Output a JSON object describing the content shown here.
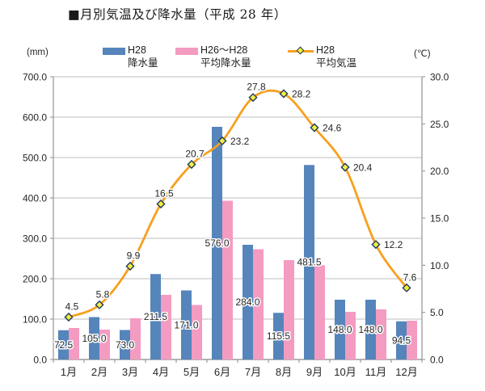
{
  "title": "■月別気温及び降水量（平成 28 年）",
  "units": {
    "left": "(mm)",
    "right": "(℃)"
  },
  "legend": {
    "items": [
      {
        "line1": "H28",
        "line2": "降水量",
        "swatch": "bar-blue"
      },
      {
        "line1": "H26～H28",
        "line2": "平均降水量",
        "swatch": "bar-pink"
      },
      {
        "line1": "H28",
        "line2": "平均気温",
        "swatch": "line-diamond"
      }
    ]
  },
  "colors": {
    "bar_h28": "#5585BB",
    "bar_avg": "#F49BC1",
    "line_temp": "#F7A01E",
    "marker_fill": "#F2EE3C",
    "marker_stroke": "#1F3864",
    "grid": "#C9C9C9",
    "axis": "#9C9C9C",
    "text": "#262626"
  },
  "chart_data": {
    "type": "combo-bar-line",
    "title": "■月別気温及び降水量（平成 28 年）",
    "categories": [
      "1月",
      "2月",
      "3月",
      "4月",
      "5月",
      "6月",
      "7月",
      "8月",
      "9月",
      "10月",
      "11月",
      "12月"
    ],
    "series": [
      {
        "name": "H28 降水量",
        "type": "bar",
        "axis": "left",
        "color": "#5585BB",
        "values": [
          72.5,
          105.0,
          73.0,
          211.5,
          171.0,
          576.0,
          284.0,
          115.5,
          481.5,
          148.0,
          148.0,
          94.5
        ],
        "data_labels": true
      },
      {
        "name": "H26～H28 平均降水量",
        "type": "bar",
        "axis": "left",
        "color": "#F49BC1",
        "values": [
          78.0,
          74.0,
          102.0,
          160.0,
          135.0,
          393.0,
          273.0,
          246.0,
          233.0,
          118.0,
          124.0,
          96.0
        ],
        "data_labels": false
      },
      {
        "name": "H28 平均気温",
        "type": "line",
        "axis": "right",
        "color": "#F7A01E",
        "marker": "diamond",
        "values": [
          4.5,
          5.8,
          9.9,
          16.5,
          20.7,
          23.2,
          27.8,
          28.2,
          24.6,
          20.4,
          12.2,
          7.6
        ],
        "data_labels": true,
        "label_placement": [
          "above",
          "above",
          "above",
          "above",
          "above",
          "right",
          "above",
          "right",
          "right",
          "right",
          "right",
          "above"
        ]
      }
    ],
    "left_axis": {
      "min": 0,
      "max": 700,
      "step": 100,
      "unit": "mm",
      "tick_labels": [
        "0.0",
        "100.0",
        "200.0",
        "300.0",
        "400.0",
        "500.0",
        "600.0",
        "700.0"
      ]
    },
    "right_axis": {
      "min": 0,
      "max": 30,
      "step": 5,
      "unit": "℃",
      "tick_labels": [
        "0.0",
        "5.0",
        "10.0",
        "15.0",
        "20.0",
        "25.0",
        "30.0"
      ]
    },
    "grid": "horizontal",
    "legend_position": "top"
  }
}
